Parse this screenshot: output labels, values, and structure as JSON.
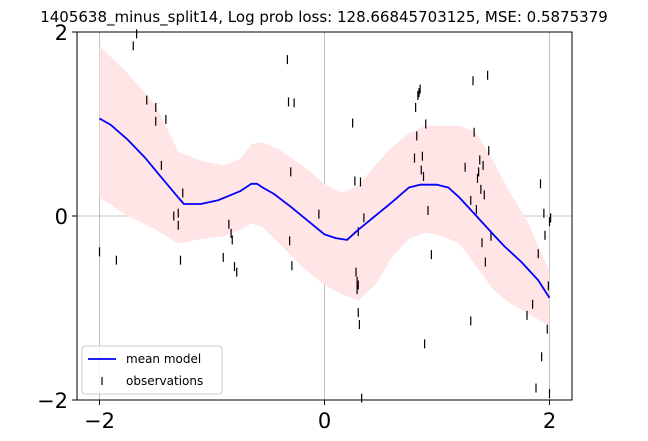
{
  "title": "1405638_minus_split14, Log prob loss: 128.66845703125, MSE: 0.5875379",
  "colors": {
    "mean": "#0000ff",
    "band": "#ffe5e5",
    "obs": "#000000",
    "grid": "#b0b0b0"
  },
  "chart_data": {
    "type": "line",
    "title": "1405638_minus_split14, Log prob loss: 128.66845703125, MSE: 0.5875379",
    "xlabel": "",
    "ylabel": "",
    "xlim": [
      -2.2,
      2.2
    ],
    "ylim": [
      -2,
      2
    ],
    "xticks": [
      -2,
      0,
      2
    ],
    "yticks": [
      -2,
      0,
      2
    ],
    "xtick_labels": [
      "−2",
      "0",
      "2"
    ],
    "ytick_labels": [
      "−2",
      "0",
      "2"
    ],
    "grid": true,
    "legend_position": "lower-left",
    "legend": [
      "mean model",
      "observations"
    ],
    "series": [
      {
        "name": "mean model",
        "kind": "line",
        "x": [
          -2.0,
          -1.9,
          -1.75,
          -1.6,
          -1.45,
          -1.3,
          -1.25,
          -1.1,
          -0.95,
          -0.85,
          -0.75,
          -0.65,
          -0.6,
          -0.55,
          -0.45,
          -0.3,
          -0.15,
          0.0,
          0.1,
          0.2,
          0.3,
          0.35,
          0.45,
          0.6,
          0.75,
          0.85,
          1.0,
          1.1,
          1.2,
          1.35,
          1.5,
          1.6,
          1.75,
          1.9,
          2.0
        ],
        "y": [
          1.06,
          0.99,
          0.83,
          0.64,
          0.42,
          0.2,
          0.13,
          0.13,
          0.17,
          0.22,
          0.27,
          0.35,
          0.35,
          0.31,
          0.24,
          0.1,
          -0.05,
          -0.2,
          -0.24,
          -0.26,
          -0.15,
          -0.1,
          0.0,
          0.15,
          0.31,
          0.34,
          0.34,
          0.31,
          0.2,
          0.0,
          -0.2,
          -0.33,
          -0.5,
          -0.7,
          -0.89
        ]
      },
      {
        "name": "uncertainty band",
        "kind": "band",
        "x": [
          -2.0,
          -1.75,
          -1.5,
          -1.3,
          -1.1,
          -0.9,
          -0.75,
          -0.65,
          -0.55,
          -0.4,
          -0.2,
          0.0,
          0.15,
          0.3,
          0.45,
          0.6,
          0.75,
          0.9,
          1.05,
          1.2,
          1.35,
          1.5,
          1.65,
          1.8,
          2.0
        ],
        "upper": [
          1.85,
          1.55,
          1.2,
          0.7,
          0.6,
          0.55,
          0.62,
          0.78,
          0.8,
          0.72,
          0.55,
          0.35,
          0.25,
          0.33,
          0.55,
          0.75,
          0.9,
          0.98,
          0.98,
          0.98,
          0.9,
          0.6,
          0.25,
          -0.05,
          -0.6
        ],
        "lower": [
          0.2,
          0.0,
          -0.15,
          -0.3,
          -0.25,
          -0.22,
          -0.15,
          -0.08,
          -0.12,
          -0.3,
          -0.55,
          -0.75,
          -0.85,
          -0.92,
          -0.75,
          -0.45,
          -0.25,
          -0.18,
          -0.22,
          -0.3,
          -0.55,
          -0.8,
          -0.95,
          -1.05,
          -1.2
        ]
      },
      {
        "name": "observations",
        "kind": "scatter",
        "x": [
          -2.0,
          -1.85,
          -1.7,
          -1.67,
          -1.58,
          -1.5,
          -1.5,
          -1.45,
          -1.41,
          -1.34,
          -1.3,
          -1.3,
          -1.28,
          -1.26,
          -0.9,
          -0.85,
          -0.83,
          -0.82,
          -0.8,
          -0.78,
          -0.33,
          -0.32,
          -0.31,
          -0.3,
          -0.29,
          -0.27,
          -0.05,
          0.25,
          0.27,
          0.28,
          0.29,
          0.29,
          0.3,
          0.3,
          0.3,
          0.31,
          0.32,
          0.33,
          0.35,
          0.8,
          0.81,
          0.82,
          0.83,
          0.84,
          0.85,
          0.86,
          0.87,
          0.88,
          0.89,
          0.9,
          0.92,
          0.95,
          1.25,
          1.3,
          1.3,
          1.32,
          1.33,
          1.35,
          1.36,
          1.37,
          1.38,
          1.39,
          1.4,
          1.41,
          1.42,
          1.43,
          1.45,
          1.46,
          1.48,
          1.8,
          1.85,
          1.88,
          1.9,
          1.92,
          1.93,
          1.95,
          1.96,
          1.98,
          1.99,
          2.0,
          2.0,
          2.01
        ],
        "y": [
          -0.39,
          -0.48,
          1.85,
          1.98,
          1.26,
          1.03,
          1.18,
          0.55,
          1.05,
          0.0,
          -0.1,
          0.03,
          -0.48,
          0.25,
          -0.45,
          -0.09,
          -0.19,
          -0.26,
          -0.55,
          -0.61,
          1.7,
          1.24,
          -0.27,
          0.48,
          -0.54,
          1.23,
          0.02,
          1.01,
          0.38,
          -0.61,
          -0.71,
          -0.8,
          -0.75,
          -0.17,
          -1.05,
          -1.18,
          0.37,
          -1.98,
          -0.02,
          0.63,
          1.18,
          0.87,
          1.31,
          1.34,
          1.38,
          0.5,
          0.65,
          0.43,
          -1.39,
          1.0,
          0.06,
          -0.42,
          0.53,
          -1.14,
          0.17,
          1.47,
          0.91,
          0.07,
          0.41,
          0.48,
          0.61,
          0.29,
          -0.29,
          0.55,
          0.23,
          -0.5,
          1.53,
          0.71,
          -0.22,
          -1.08,
          -0.96,
          -1.87,
          -0.41,
          0.35,
          -1.53,
          0.03,
          -0.21,
          -1.23,
          -0.76,
          -0.06,
          -1.93,
          -0.02
        ]
      }
    ]
  }
}
